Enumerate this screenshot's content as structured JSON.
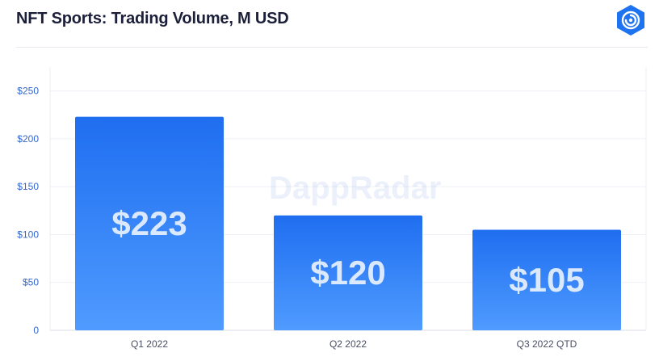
{
  "header": {
    "title": "NFT Sports: Trading Volume, M USD",
    "logo_icon": "dappradar-logo-icon"
  },
  "watermark": "DappRadar",
  "colors": {
    "bar_top": "#1f6ef0",
    "bar_bottom": "#4f9bff",
    "axis_text": "#3366cc",
    "title": "#1c1f3a",
    "logo": "#1e73f0"
  },
  "chart_data": {
    "type": "bar",
    "title": "NFT Sports: Trading Volume, M USD",
    "categories": [
      "Q1 2022",
      "Q2 2022",
      "Q3 2022 QTD"
    ],
    "values": [
      223,
      120,
      105
    ],
    "value_labels": [
      "$223",
      "$120",
      "$105"
    ],
    "ylim": [
      0,
      275
    ],
    "yticks": [
      0,
      50,
      100,
      150,
      200,
      250
    ],
    "ytick_labels": [
      "0",
      "$50",
      "$100",
      "$150",
      "$200",
      "$250"
    ],
    "xlabel": "",
    "ylabel": "",
    "grid": true
  }
}
